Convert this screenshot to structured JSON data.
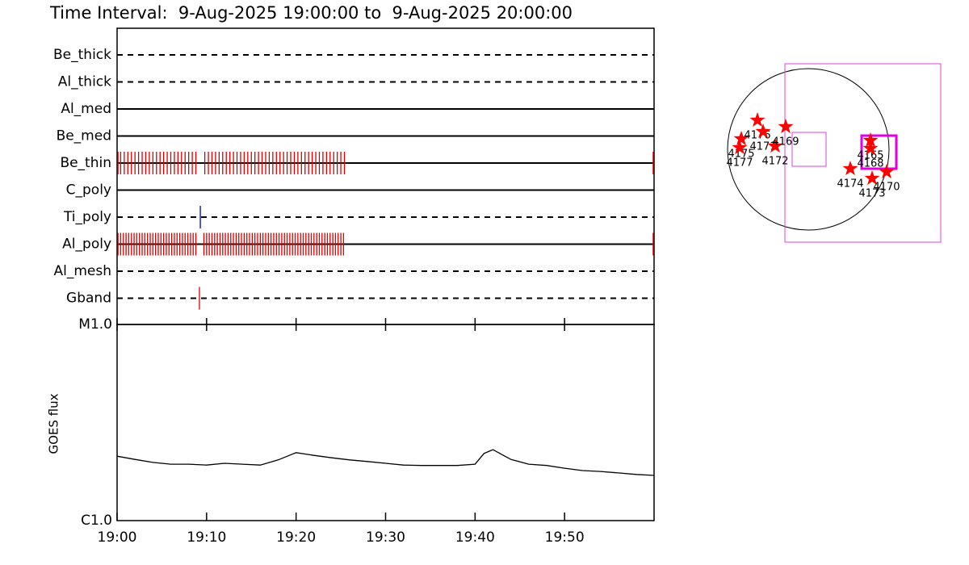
{
  "title": "Time Interval:  9-Aug-2025 19:00:00 to  9-Aug-2025 20:00:00",
  "chart_data": [
    {
      "type": "timeline",
      "xlim": [
        0,
        60
      ],
      "rows": [
        {
          "name": "Be_thick",
          "linestyle": "dashed",
          "color": "#dd0000",
          "events": []
        },
        {
          "name": "Al_thick",
          "linestyle": "dashed",
          "color": "#dd0000",
          "events": []
        },
        {
          "name": "Al_med",
          "linestyle": "solid",
          "color": "#dd0000",
          "events": []
        },
        {
          "name": "Be_med",
          "linestyle": "solid",
          "color": "#dd0000",
          "events": []
        },
        {
          "name": "Be_thin",
          "linestyle": "solid",
          "color": "#dd0000",
          "events": [
            0.1,
            0.4,
            0.8,
            1.2,
            1.6,
            2.0,
            2.4,
            2.8,
            3.2,
            3.6,
            4.0,
            4.4,
            4.8,
            5.2,
            5.6,
            6.0,
            6.4,
            6.8,
            7.2,
            7.6,
            8.0,
            8.4,
            8.8,
            9.8,
            10.2,
            10.6,
            11.0,
            11.4,
            11.8,
            12.2,
            12.6,
            13.0,
            13.4,
            13.8,
            14.2,
            14.6,
            15.0,
            15.4,
            15.8,
            16.2,
            16.6,
            17.0,
            17.4,
            17.8,
            18.2,
            18.6,
            19.0,
            19.4,
            19.8,
            20.2,
            20.6,
            21.0,
            21.4,
            21.8,
            22.2,
            22.6,
            23.0,
            23.4,
            23.8,
            24.2,
            24.6,
            25.0,
            25.4,
            59.9
          ]
        },
        {
          "name": "C_poly",
          "linestyle": "solid",
          "color": "#dd0000",
          "events": []
        },
        {
          "name": "Ti_poly",
          "linestyle": "dashed",
          "color": "#0000cc",
          "events": [
            9.3
          ]
        },
        {
          "name": "Al_poly",
          "linestyle": "solid",
          "color": "#dd0000",
          "events": [
            0.1,
            0.4,
            0.7,
            1.0,
            1.3,
            1.6,
            1.9,
            2.2,
            2.5,
            2.8,
            3.1,
            3.4,
            3.7,
            4.0,
            4.3,
            4.6,
            4.9,
            5.2,
            5.5,
            5.8,
            6.1,
            6.4,
            6.7,
            7.0,
            7.3,
            7.6,
            7.9,
            8.2,
            8.5,
            8.8,
            9.7,
            10.0,
            10.3,
            10.6,
            10.9,
            11.2,
            11.5,
            11.8,
            12.1,
            12.4,
            12.7,
            13.0,
            13.3,
            13.6,
            13.9,
            14.2,
            14.5,
            14.8,
            15.1,
            15.4,
            15.7,
            16.0,
            16.3,
            16.6,
            16.9,
            17.2,
            17.5,
            17.8,
            18.1,
            18.4,
            18.7,
            19.0,
            19.3,
            19.6,
            19.9,
            20.2,
            20.5,
            20.8,
            21.1,
            21.4,
            21.7,
            22.0,
            22.3,
            22.6,
            22.9,
            23.2,
            23.5,
            23.8,
            24.1,
            24.4,
            24.7,
            25.0,
            25.3,
            59.9
          ]
        },
        {
          "name": "Al_mesh",
          "linestyle": "dashed",
          "color": "#dd0000",
          "events": []
        },
        {
          "name": "Gband",
          "linestyle": "dashed",
          "color": "#dd0000",
          "events": [
            9.2
          ]
        }
      ]
    },
    {
      "type": "line",
      "ylabel": "GOES flux",
      "log_scale": true,
      "color": "#000000",
      "xlim": [
        0,
        60
      ],
      "ylim": [
        1e-06,
        1e-05
      ],
      "xticks": [
        {
          "value": 0,
          "label": "19:00"
        },
        {
          "value": 10,
          "label": "19:10"
        },
        {
          "value": 20,
          "label": "19:20"
        },
        {
          "value": 30,
          "label": "19:30"
        },
        {
          "value": 40,
          "label": "19:40"
        },
        {
          "value": 50,
          "label": "19:50"
        }
      ],
      "yticks": [
        {
          "value": 1e-06,
          "label": "C1.0"
        },
        {
          "value": 1e-05,
          "label": "M1.0"
        }
      ],
      "x": [
        0,
        2,
        4,
        6,
        8,
        10,
        12,
        14,
        16,
        18,
        20,
        22,
        24,
        26,
        28,
        30,
        32,
        34,
        36,
        38,
        40,
        41,
        42,
        43,
        44,
        46,
        48,
        50,
        52,
        54,
        56,
        58,
        60
      ],
      "values": [
        2.13e-06,
        2.05e-06,
        1.98e-06,
        1.94e-06,
        1.94e-06,
        1.92e-06,
        1.96e-06,
        1.94e-06,
        1.92e-06,
        2.04e-06,
        2.22e-06,
        2.15e-06,
        2.09e-06,
        2.04e-06,
        2e-06,
        1.96e-06,
        1.92e-06,
        1.91e-06,
        1.91e-06,
        1.91e-06,
        1.94e-06,
        2.2e-06,
        2.3e-06,
        2.17e-06,
        2.05e-06,
        1.94e-06,
        1.91e-06,
        1.85e-06,
        1.8e-06,
        1.78e-06,
        1.75e-06,
        1.72e-06,
        1.7e-06
      ]
    },
    {
      "type": "map",
      "color": "#ff0000",
      "labels": [
        "4175",
        "4177",
        "4176",
        "4171",
        "4172",
        "4169",
        "4165",
        "4168",
        "4174",
        "4173",
        "4170"
      ],
      "x": [
        -0.83,
        -0.85,
        -0.63,
        -0.56,
        -0.41,
        -0.28,
        0.77,
        0.77,
        0.52,
        0.79,
        0.97
      ],
      "values": [
        0.13,
        0.02,
        0.36,
        0.22,
        0.04,
        0.28,
        0.11,
        0.01,
        -0.24,
        -0.36,
        -0.28
      ]
    }
  ]
}
